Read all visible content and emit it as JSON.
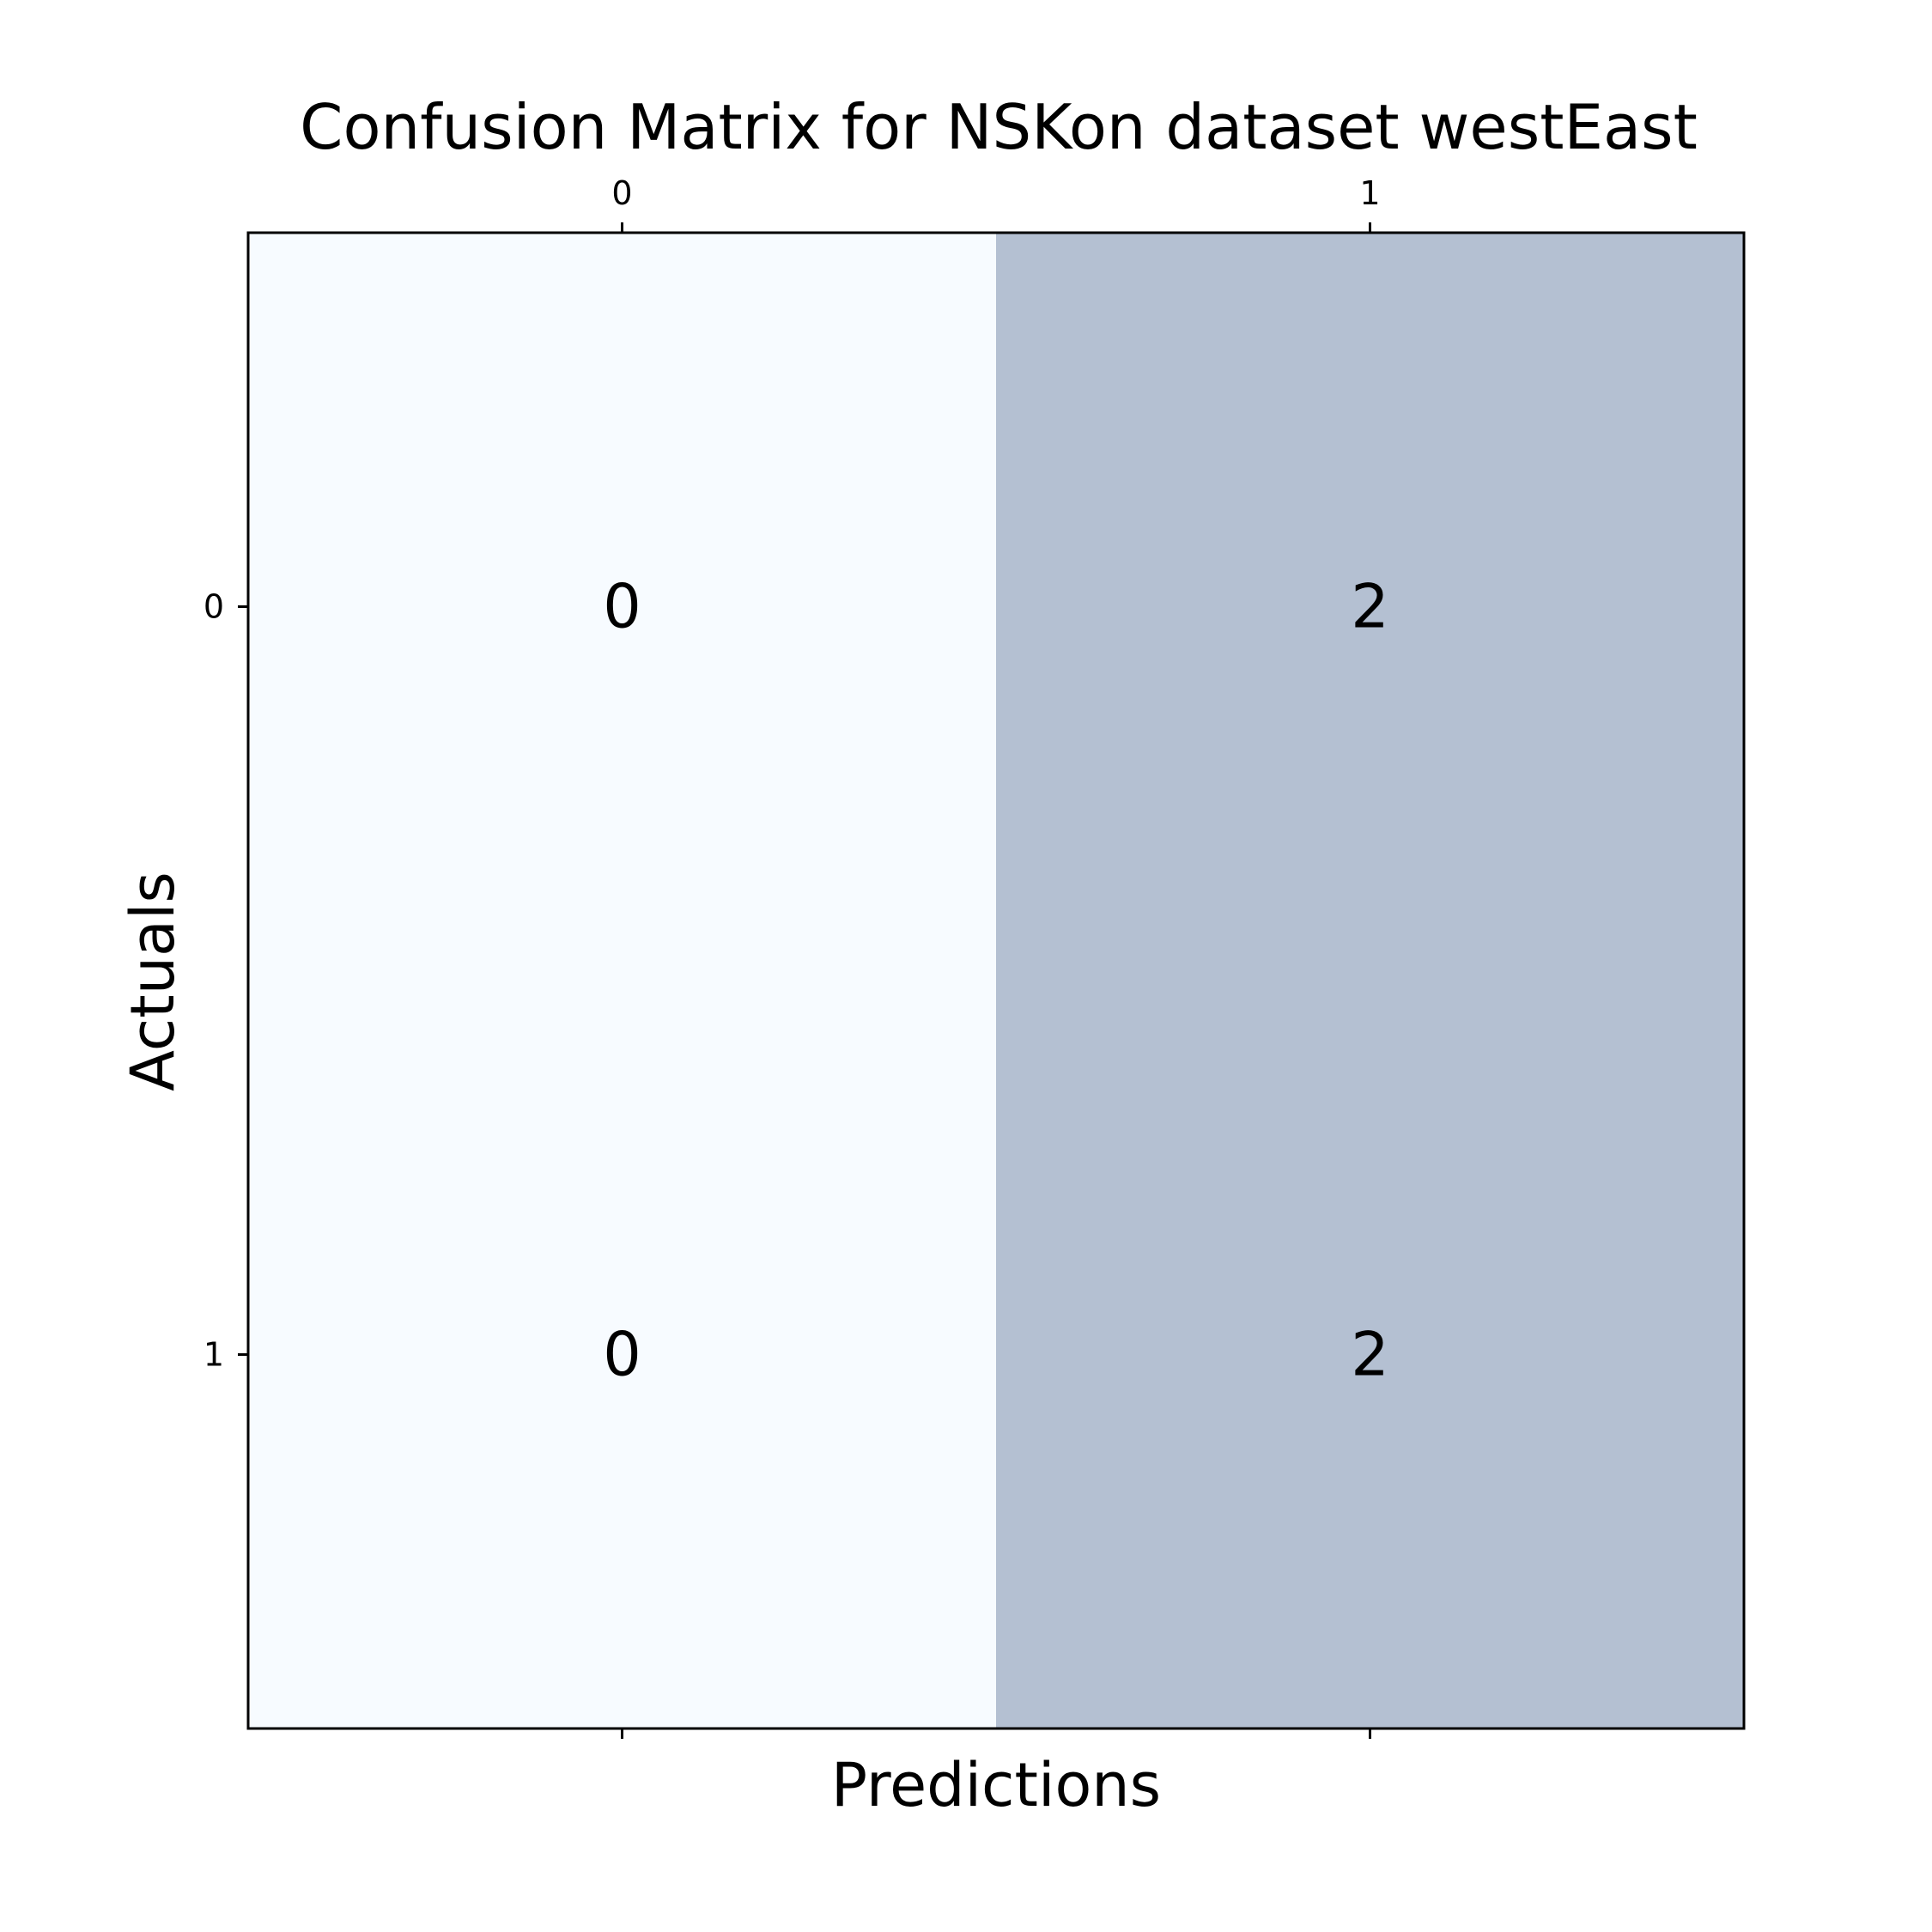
{
  "chart_data": {
    "type": "heatmap",
    "title": "Confusion Matrix for NSKon dataset westEast",
    "xlabel": "Predictions",
    "ylabel": "Actuals",
    "x_categories": [
      "0",
      "1"
    ],
    "y_categories": [
      "0",
      "1"
    ],
    "values": [
      [
        0,
        2
      ],
      [
        0,
        2
      ]
    ],
    "value_range": [
      0,
      2
    ],
    "x_ticks_position": "top",
    "colors": {
      "low": "#f7fbff",
      "high": "#b4c0d2",
      "frame": "#000000"
    }
  }
}
